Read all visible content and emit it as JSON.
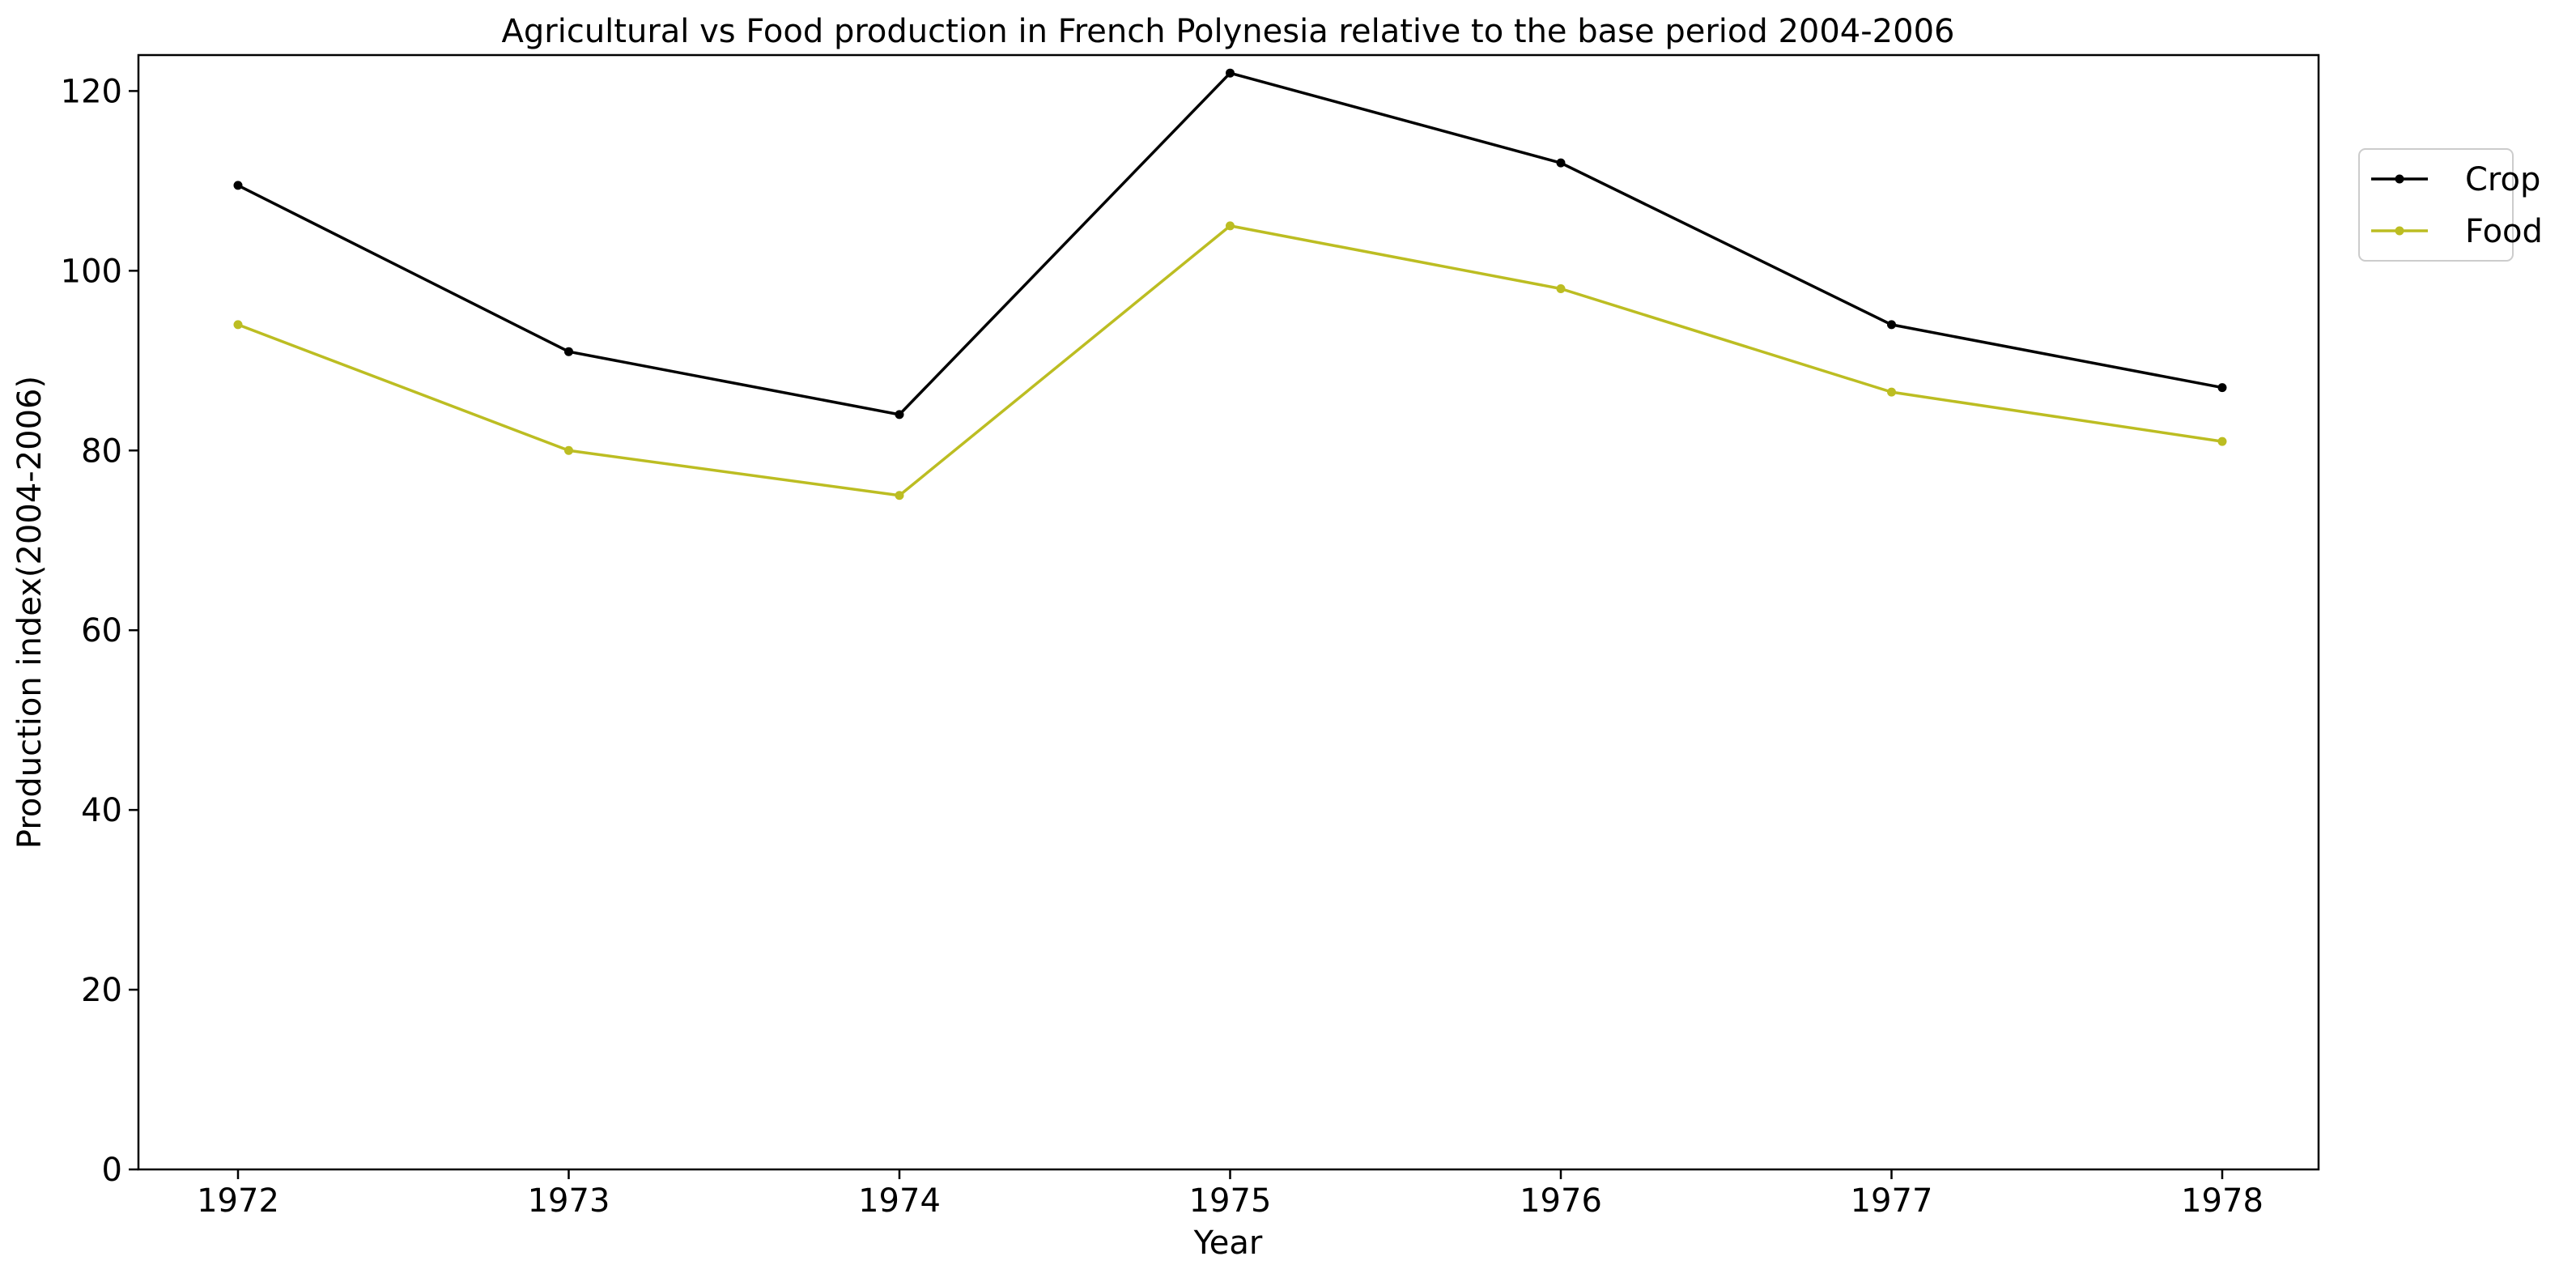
{
  "chart_data": {
    "type": "line",
    "title": "Agricultural vs Food production in French Polynesia relative to the base period 2004-2006",
    "xlabel": "Year",
    "ylabel": "Production index(2004-2006)",
    "x": [
      "1972",
      "1973",
      "1974",
      "1975",
      "1976",
      "1977",
      "1978"
    ],
    "ylim": [
      0,
      124
    ],
    "yticks": [
      "0",
      "20",
      "40",
      "60",
      "80",
      "100",
      "120"
    ],
    "grid": false,
    "legend_position": "upper right, outside plot",
    "series": [
      {
        "name": "Crop",
        "color": "#000000",
        "values": [
          109.5,
          91,
          84,
          122,
          112,
          94,
          87
        ]
      },
      {
        "name": "Food",
        "color": "#bcbd22",
        "values": [
          94,
          80,
          75,
          105,
          98,
          86.5,
          81
        ]
      }
    ]
  }
}
